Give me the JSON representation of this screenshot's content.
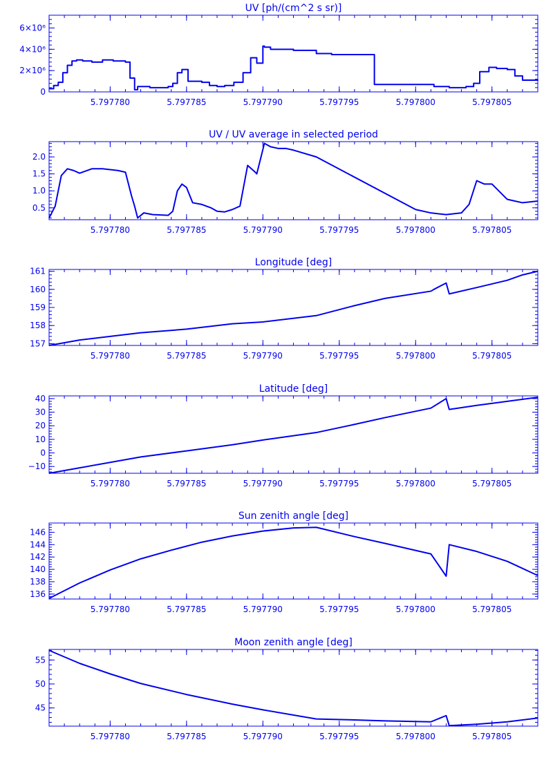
{
  "colors": {
    "plot": "#0000ee",
    "background": "#ffffff"
  },
  "chart_data": [
    {
      "type": "line",
      "title": "UV [ph/(cm^2 s sr)]",
      "xlim": [
        5.797776,
        5.797808
      ],
      "ylim": [
        0,
        7200000
      ],
      "x_ticks": [
        5.79778,
        5.797785,
        5.79779,
        5.797795,
        5.7978,
        5.797805
      ],
      "x_tick_labels": [
        "5.797780",
        "5.797785",
        "5.797790",
        "5.797795",
        "5.797800",
        "5.797805"
      ],
      "y_ticks": [
        0,
        2000000,
        4000000,
        6000000
      ],
      "y_tick_labels": [
        "0",
        "2×10⁶",
        "4×10⁶",
        "6×10⁶"
      ],
      "step": true,
      "x": [
        5.797776,
        5.7977763,
        5.7977766,
        5.7977769,
        5.7977772,
        5.7977775,
        5.7977778,
        5.7977782,
        5.7977788,
        5.7977795,
        5.7977802,
        5.797781,
        5.7977813,
        5.7977816,
        5.7977818,
        5.7977822,
        5.7977826,
        5.797783,
        5.7977835,
        5.7977838,
        5.7977841,
        5.7977844,
        5.7977847,
        5.7977851,
        5.7977855,
        5.797786,
        5.7977865,
        5.797787,
        5.7977875,
        5.7977881,
        5.7977887,
        5.7977892,
        5.7977896,
        5.79779,
        5.7977901,
        5.7977905,
        5.7977912,
        5.797792,
        5.7977935,
        5.7977945,
        5.7977972,
        5.7977973,
        5.7978,
        5.7978012,
        5.7978022,
        5.7978029,
        5.7978033,
        5.7978038,
        5.7978042,
        5.7978048,
        5.7978053,
        5.797806,
        5.7978065,
        5.797807,
        5.797808
      ],
      "y": [
        300000,
        600000,
        900000,
        1800000,
        2500000,
        2900000,
        3000000,
        2900000,
        2800000,
        3000000,
        2900000,
        2800000,
        1300000,
        200000,
        500000,
        500000,
        400000,
        400000,
        400000,
        500000,
        800000,
        1800000,
        2100000,
        1000000,
        1000000,
        900000,
        600000,
        500000,
        600000,
        900000,
        1800000,
        3200000,
        2700000,
        4300000,
        4200000,
        4000000,
        4000000,
        3900000,
        3600000,
        3500000,
        3500000,
        700000,
        700000,
        500000,
        400000,
        400000,
        500000,
        800000,
        1900000,
        2300000,
        2200000,
        2100000,
        1500000,
        1100000,
        1050000
      ]
    },
    {
      "type": "line",
      "title": "UV / UV average in selected period",
      "xlim": [
        5.797776,
        5.797808
      ],
      "ylim": [
        0.15,
        2.45
      ],
      "x_ticks": [
        5.79778,
        5.797785,
        5.79779,
        5.797795,
        5.7978,
        5.797805
      ],
      "x_tick_labels": [
        "5.797780",
        "5.797785",
        "5.797790",
        "5.797795",
        "5.797800",
        "5.797805"
      ],
      "y_ticks": [
        0.5,
        1.0,
        1.5,
        2.0
      ],
      "y_tick_labels": [
        "0.5",
        "1.0",
        "1.5",
        "2.0"
      ],
      "x": [
        5.797776,
        5.7977764,
        5.7977768,
        5.7977772,
        5.7977776,
        5.797778,
        5.7977788,
        5.7977795,
        5.7977805,
        5.797781,
        5.7977814,
        5.7977816,
        5.7977818,
        5.7977822,
        5.7977828,
        5.7977838,
        5.7977841,
        5.7977844,
        5.7977847,
        5.797785,
        5.7977854,
        5.797786,
        5.7977866,
        5.797787,
        5.7977875,
        5.797788,
        5.7977885,
        5.797789,
        5.7977895,
        5.7977896,
        5.7977901,
        5.7977905,
        5.797791,
        5.7977915,
        5.797792,
        5.7977935,
        5.7978,
        5.797801,
        5.797802,
        5.797803,
        5.7978035,
        5.797804,
        5.7978045,
        5.797805,
        5.797806,
        5.7978065,
        5.797807,
        5.797808
      ],
      "y": [
        0.2,
        0.55,
        1.45,
        1.65,
        1.6,
        1.52,
        1.65,
        1.65,
        1.6,
        1.55,
        0.85,
        0.55,
        0.2,
        0.35,
        0.3,
        0.28,
        0.4,
        1.0,
        1.2,
        1.1,
        0.65,
        0.6,
        0.5,
        0.4,
        0.38,
        0.45,
        0.55,
        1.75,
        1.55,
        1.5,
        2.4,
        2.3,
        2.25,
        2.25,
        2.2,
        2.0,
        0.45,
        0.35,
        0.3,
        0.35,
        0.6,
        1.3,
        1.2,
        1.2,
        0.75,
        0.7,
        0.65,
        0.7
      ]
    },
    {
      "type": "line",
      "title": "Longitude [deg]",
      "xlim": [
        5.797776,
        5.797808
      ],
      "ylim": [
        156.9,
        161.1
      ],
      "x_ticks": [
        5.79778,
        5.797785,
        5.79779,
        5.797795,
        5.7978,
        5.797805
      ],
      "x_tick_labels": [
        "5.797780",
        "5.797785",
        "5.797790",
        "5.797795",
        "5.797800",
        "5.797805"
      ],
      "y_ticks": [
        157,
        158,
        159,
        160,
        161
      ],
      "y_tick_labels": [
        "157",
        "158",
        "159",
        "160",
        "161"
      ],
      "x": [
        5.797776,
        5.797778,
        5.79778,
        5.797782,
        5.797785,
        5.797788,
        5.79779,
        5.7977935,
        5.797796,
        5.797798,
        5.797801,
        5.7978012,
        5.797802,
        5.7978022,
        5.797804,
        5.797805,
        5.797806,
        5.797807,
        5.797808
      ],
      "y": [
        156.9,
        157.2,
        157.4,
        157.6,
        157.8,
        158.1,
        158.2,
        158.55,
        159.1,
        159.5,
        159.9,
        160.0,
        160.35,
        159.75,
        160.1,
        160.3,
        160.5,
        160.8,
        161.0
      ]
    },
    {
      "type": "line",
      "title": "Latitude [deg]",
      "xlim": [
        5.797776,
        5.797808
      ],
      "ylim": [
        -15,
        42
      ],
      "x_ticks": [
        5.79778,
        5.797785,
        5.79779,
        5.797795,
        5.7978,
        5.797805
      ],
      "x_tick_labels": [
        "5.797780",
        "5.797785",
        "5.797790",
        "5.797795",
        "5.797800",
        "5.797805"
      ],
      "y_ticks": [
        -10,
        0,
        10,
        20,
        30,
        40
      ],
      "y_tick_labels": [
        "−10",
        "0",
        "10",
        "20",
        "30",
        "40"
      ],
      "x": [
        5.797776,
        5.797778,
        5.79778,
        5.797782,
        5.797785,
        5.797788,
        5.79779,
        5.7977935,
        5.797796,
        5.797798,
        5.797801,
        5.797802,
        5.7978022,
        5.797804,
        5.797806,
        5.797808
      ],
      "y": [
        -15,
        -11,
        -7,
        -3,
        1.5,
        6,
        9.5,
        15,
        21,
        26,
        33,
        40,
        32,
        35,
        38,
        41
      ]
    },
    {
      "type": "line",
      "title": "Sun zenith angle [deg]",
      "xlim": [
        5.797776,
        5.797808
      ],
      "ylim": [
        135.2,
        147.5
      ],
      "x_ticks": [
        5.79778,
        5.797785,
        5.79779,
        5.797795,
        5.7978,
        5.797805
      ],
      "x_tick_labels": [
        "5.797780",
        "5.797785",
        "5.797790",
        "5.797795",
        "5.797800",
        "5.797805"
      ],
      "y_ticks": [
        136,
        138,
        140,
        142,
        144,
        146
      ],
      "y_tick_labels": [
        "136",
        "138",
        "140",
        "142",
        "144",
        "146"
      ],
      "x": [
        5.797776,
        5.797778,
        5.79778,
        5.797782,
        5.797784,
        5.797786,
        5.797788,
        5.79779,
        5.797792,
        5.7977935,
        5.797796,
        5.797798,
        5.797801,
        5.797802,
        5.7978022,
        5.797804,
        5.797806,
        5.797808
      ],
      "y": [
        135.3,
        137.8,
        139.9,
        141.7,
        143.1,
        144.4,
        145.4,
        146.2,
        146.7,
        146.8,
        145.3,
        144.2,
        142.5,
        138.9,
        144.0,
        142.9,
        141.3,
        139.0
      ]
    },
    {
      "type": "line",
      "title": "Moon zenith angle [deg]",
      "xlim": [
        5.797776,
        5.797808
      ],
      "ylim": [
        41.2,
        57.2
      ],
      "x_ticks": [
        5.79778,
        5.797785,
        5.79779,
        5.797795,
        5.7978,
        5.797805
      ],
      "x_tick_labels": [
        "5.797780",
        "5.797785",
        "5.797790",
        "5.797795",
        "5.797800",
        "5.797805"
      ],
      "y_ticks": [
        45,
        50,
        55
      ],
      "y_tick_labels": [
        "45",
        "50",
        "55"
      ],
      "x": [
        5.797776,
        5.797778,
        5.79778,
        5.797782,
        5.797785,
        5.797788,
        5.79779,
        5.7977935,
        5.797796,
        5.797798,
        5.797801,
        5.797802,
        5.7978022,
        5.797804,
        5.797806,
        5.797808
      ],
      "y": [
        57.0,
        54.3,
        52.1,
        50.1,
        47.8,
        45.8,
        44.6,
        42.7,
        42.5,
        42.3,
        42.1,
        43.4,
        41.3,
        41.6,
        42.1,
        42.9
      ]
    }
  ]
}
